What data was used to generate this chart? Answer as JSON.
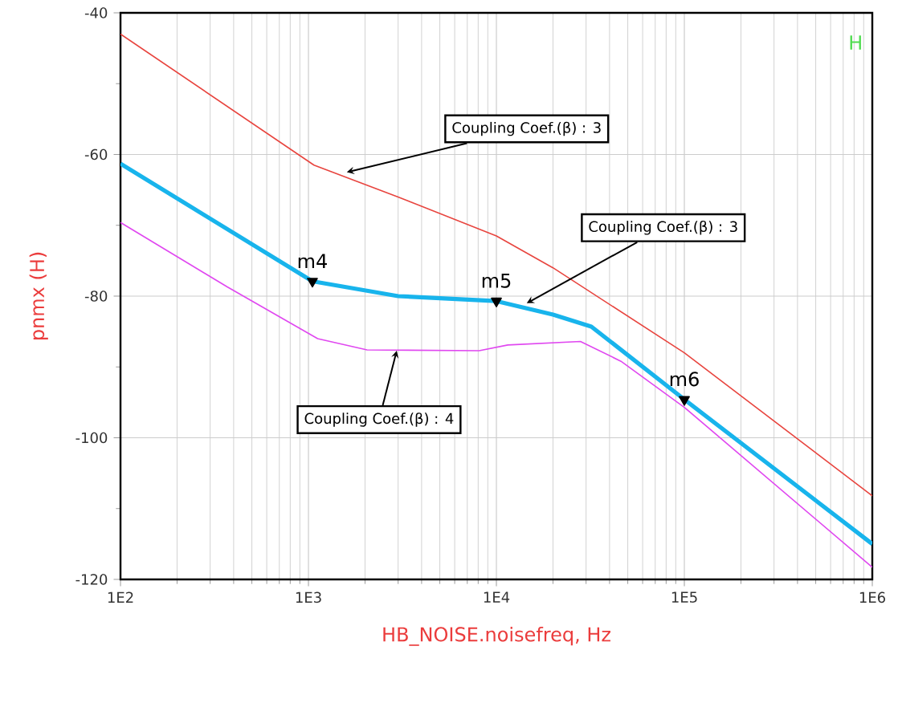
{
  "chart_data": {
    "type": "line",
    "xlabel": "HB_NOISE.noisefreq, Hz",
    "ylabel": "pnmx (H)",
    "log": "x",
    "grid": true,
    "xlim": [
      100,
      1000000
    ],
    "ylim": [
      -120,
      -40
    ],
    "xticks": [
      {
        "value": 100,
        "label": "1E2"
      },
      {
        "value": 1000,
        "label": "1E3"
      },
      {
        "value": 10000,
        "label": "1E4"
      },
      {
        "value": 100000,
        "label": "1E5"
      },
      {
        "value": 1000000,
        "label": "1E6"
      }
    ],
    "yticks": [
      -120,
      -100,
      -80,
      -60,
      -40
    ],
    "series": [
      {
        "color": "#e8453f",
        "x": [
          100,
          1070,
          3000,
          10000,
          20000,
          100000,
          1000000
        ],
        "values": [
          -43,
          -61.5,
          -66,
          -71.5,
          -76,
          -88,
          -108.2
        ]
      },
      {
        "color": "#18b4ec",
        "x": [
          100,
          1050,
          3000,
          10000,
          20000,
          32000,
          100000,
          1000000
        ],
        "values": [
          -61.3,
          -77.9,
          -80,
          -80.7,
          -82.6,
          -84.3,
          -94.6,
          -115
        ]
      },
      {
        "color": "#e048f0",
        "x": [
          100,
          370,
          1120,
          2050,
          8100,
          11500,
          28000,
          46000,
          100000,
          1000000
        ],
        "values": [
          -69.6,
          -78.7,
          -86,
          -87.6,
          -87.7,
          -86.9,
          -86.4,
          -89.2,
          -95.7,
          -118.3
        ]
      },
      {
        "type": "scatter",
        "marker": "triangle",
        "color": "#000000",
        "x": [
          1050,
          10000,
          100000
        ],
        "values": [
          -77.9,
          -80.7,
          -94.6
        ]
      }
    ],
    "annotations": [
      {
        "text": "m4",
        "x": 1050,
        "y": -77.9
      },
      {
        "text": "m5",
        "x": 10000,
        "y": -80.7
      },
      {
        "text": "m6",
        "x": 100000,
        "y": -94.6
      },
      {
        "text": "Coupling Coef.(β) : 3",
        "x": 1600,
        "y": -62.5
      },
      {
        "text": "Coupling Coef.(β) : 3",
        "x": 14500,
        "y": -81
      },
      {
        "text": "Coupling Coef.(β) : 4",
        "x": 2950,
        "y": -87.7
      },
      "H"
    ]
  }
}
